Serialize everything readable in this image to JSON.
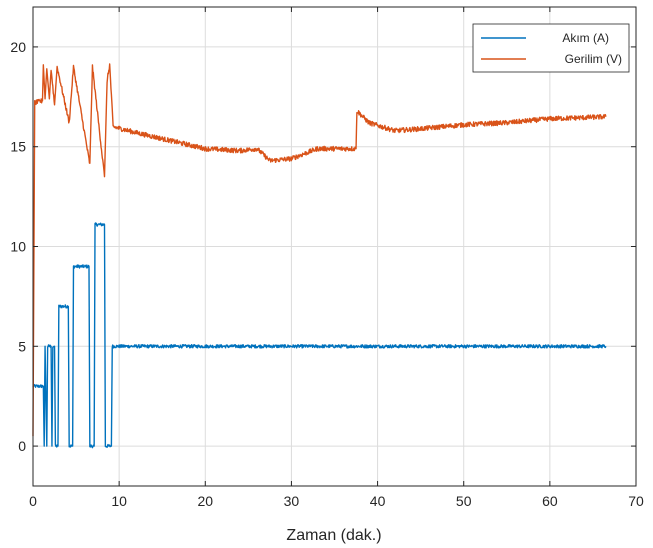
{
  "chart_data": {
    "type": "line",
    "title": "",
    "xlabel": "Zaman (dak.)",
    "ylabel": "",
    "xlim": [
      0,
      70
    ],
    "ylim": [
      -2,
      22
    ],
    "xticks": [
      0,
      10,
      20,
      30,
      40,
      50,
      60,
      70
    ],
    "yticks": [
      0,
      5,
      10,
      15,
      20
    ],
    "grid": true,
    "legend_position": "top-right",
    "series": [
      {
        "name": "Akım (A)",
        "color": "#0072BD",
        "noise": 0.08,
        "points": [
          [
            0,
            3.0
          ],
          [
            1.2,
            3.0
          ],
          [
            1.3,
            0.0
          ],
          [
            1.4,
            5.0
          ],
          [
            1.6,
            0.0
          ],
          [
            1.7,
            5.0
          ],
          [
            2.1,
            5.0
          ],
          [
            2.2,
            0.0
          ],
          [
            2.3,
            5.0
          ],
          [
            2.5,
            5.0
          ],
          [
            2.6,
            0.0
          ],
          [
            2.9,
            0.0
          ],
          [
            3.0,
            7.0
          ],
          [
            4.1,
            7.0
          ],
          [
            4.2,
            0.0
          ],
          [
            4.6,
            0.0
          ],
          [
            4.7,
            9.0
          ],
          [
            6.5,
            9.0
          ],
          [
            6.6,
            0.0
          ],
          [
            7.1,
            0.0
          ],
          [
            7.2,
            11.1
          ],
          [
            8.3,
            11.1
          ],
          [
            8.4,
            0.0
          ],
          [
            9.1,
            0.0
          ],
          [
            9.2,
            5.0
          ],
          [
            66.5,
            5.0
          ]
        ]
      },
      {
        "name": "Gerilim (V)",
        "color": "#D95319",
        "noise": 0.12,
        "points": [
          [
            0,
            0.5
          ],
          [
            0.2,
            17.2
          ],
          [
            1.1,
            17.3
          ],
          [
            1.2,
            19.1
          ],
          [
            1.4,
            17.4
          ],
          [
            1.6,
            18.9
          ],
          [
            1.9,
            17.4
          ],
          [
            2.1,
            18.9
          ],
          [
            2.5,
            17.1
          ],
          [
            2.8,
            19.0
          ],
          [
            4.2,
            16.2
          ],
          [
            4.7,
            19.0
          ],
          [
            6.6,
            14.1
          ],
          [
            6.9,
            19.0
          ],
          [
            8.3,
            13.5
          ],
          [
            8.6,
            18.3
          ],
          [
            8.9,
            19.1
          ],
          [
            9.3,
            16.0
          ],
          [
            12,
            15.7
          ],
          [
            15,
            15.4
          ],
          [
            20,
            14.9
          ],
          [
            24,
            14.8
          ],
          [
            26,
            14.9
          ],
          [
            27.5,
            14.3
          ],
          [
            30,
            14.4
          ],
          [
            33,
            14.9
          ],
          [
            37.5,
            14.9
          ],
          [
            37.6,
            16.8
          ],
          [
            39,
            16.2
          ],
          [
            42,
            15.8
          ],
          [
            45,
            15.9
          ],
          [
            50,
            16.1
          ],
          [
            55,
            16.2
          ],
          [
            60,
            16.4
          ],
          [
            66.5,
            16.5
          ]
        ]
      }
    ]
  }
}
